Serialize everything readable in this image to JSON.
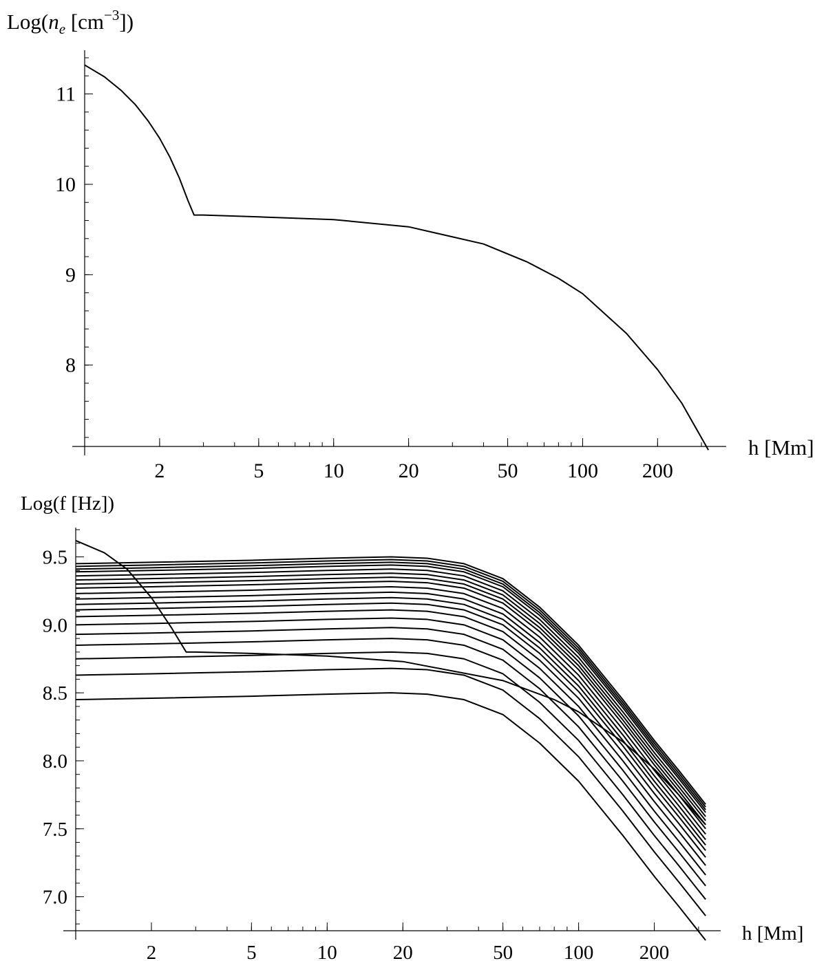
{
  "chart_data": [
    {
      "type": "line",
      "title": "",
      "ylabel_prefix": "Log(",
      "ylabel_var": "n",
      "ylabel_sub": "e",
      "ylabel_unit": " [cm",
      "ylabel_exp": "−3",
      "ylabel_suffix": "])",
      "xlabel": "h [Mm]",
      "xscale": "log",
      "xlim": [
        1.0,
        330
      ],
      "ylim": [
        7.1,
        11.4
      ],
      "x_ticks": [
        2,
        5,
        10,
        20,
        50,
        100,
        200
      ],
      "x_tick_labels": [
        "2",
        "5",
        "10",
        "20",
        "50",
        "100",
        "200"
      ],
      "y_ticks": [
        8,
        9,
        10,
        11
      ],
      "y_tick_labels": [
        "8",
        "9",
        "10",
        "11"
      ],
      "grid": false,
      "series": [
        {
          "x": [
            1.0,
            1.2,
            1.4,
            1.6,
            1.8,
            2.0,
            2.2,
            2.4,
            2.6,
            2.75,
            3,
            5,
            10,
            20,
            40,
            60,
            80,
            100,
            150,
            200,
            250,
            320
          ],
          "y": [
            11.32,
            11.19,
            11.04,
            10.88,
            10.7,
            10.51,
            10.3,
            10.07,
            9.82,
            9.66,
            9.66,
            9.64,
            9.61,
            9.53,
            9.34,
            9.14,
            8.96,
            8.79,
            8.35,
            7.95,
            7.58,
            7.06
          ]
        }
      ]
    },
    {
      "type": "line",
      "title": "",
      "ylabel": "Log(f [Hz])",
      "xlabel": "h [Mm]",
      "xscale": "log",
      "xlim": [
        1.0,
        330
      ],
      "ylim": [
        6.75,
        9.7
      ],
      "x_ticks": [
        2,
        5,
        10,
        20,
        50,
        100,
        200
      ],
      "x_tick_labels": [
        "2",
        "5",
        "10",
        "20",
        "50",
        "100",
        "200"
      ],
      "y_ticks": [
        7.0,
        7.5,
        8.0,
        8.5,
        9.0,
        9.5
      ],
      "y_tick_labels": [
        "7.0",
        "7.5",
        "8.0",
        "8.5",
        "9.0",
        "9.5"
      ],
      "grid": false,
      "family_x": [
        1.0,
        2.0,
        5.0,
        10.0,
        18.0,
        25.0,
        35.0,
        50.0,
        70.0,
        100.0,
        150.0,
        200.0,
        250.0,
        320.0
      ],
      "family_shape": [
        0.0,
        0.01,
        0.025,
        0.04,
        0.05,
        0.04,
        0.0,
        -0.11,
        -0.32,
        -0.6,
        -1.0,
        -1.3,
        -1.52,
        -1.77
      ],
      "family_y0": [
        8.45,
        8.63,
        8.75,
        8.85,
        8.93,
        9.0,
        9.06,
        9.11,
        9.15,
        9.19,
        9.23,
        9.27,
        9.3,
        9.33,
        9.36,
        9.39,
        9.41,
        9.43,
        9.45
      ],
      "plasma_series": {
        "x": [
          1.0,
          1.3,
          1.6,
          2.0,
          2.4,
          2.75,
          3,
          5,
          10,
          20,
          50,
          80,
          100,
          150,
          200,
          250,
          320
        ],
        "y": [
          9.62,
          9.53,
          9.41,
          9.2,
          8.98,
          8.8,
          8.8,
          8.79,
          8.77,
          8.73,
          8.59,
          8.45,
          8.36,
          8.14,
          7.94,
          7.75,
          7.53
        ]
      }
    }
  ]
}
